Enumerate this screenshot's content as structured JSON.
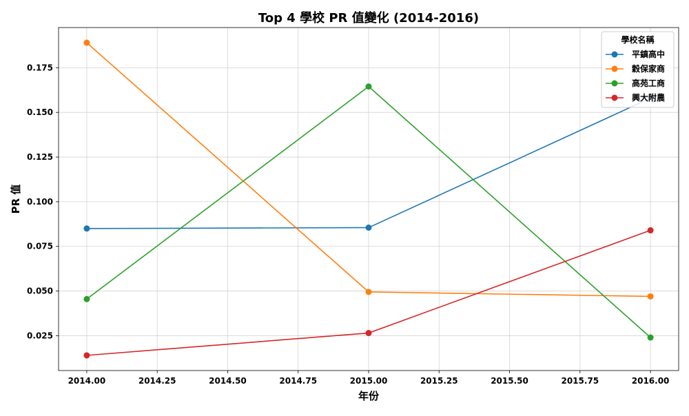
{
  "chart_data": {
    "type": "line",
    "title": "Top 4 學校 PR 值變化 (2014-2016)",
    "xlabel": "年份",
    "ylabel": "PR 值",
    "x": [
      2014,
      2015,
      2016
    ],
    "xlim": [
      2013.9,
      2016.1
    ],
    "ylim": [
      0.0055,
      0.1975
    ],
    "x_ticks": [
      2014.0,
      2014.25,
      2014.5,
      2014.75,
      2015.0,
      2015.25,
      2015.5,
      2015.75,
      2016.0
    ],
    "x_tick_labels": [
      "2014.00",
      "2014.25",
      "2014.50",
      "2014.75",
      "2015.00",
      "2015.25",
      "2015.50",
      "2015.75",
      "2016.00"
    ],
    "y_ticks": [
      0.025,
      0.05,
      0.075,
      0.1,
      0.125,
      0.15,
      0.175
    ],
    "y_tick_labels": [
      "0.025",
      "0.050",
      "0.075",
      "0.100",
      "0.125",
      "0.150",
      "0.175"
    ],
    "grid": true,
    "legend": {
      "title": "學校名稱",
      "position": "top-right"
    },
    "series": [
      {
        "name": "平鎮高中",
        "color": "#1f77b4",
        "values": [
          0.085,
          0.0855,
          0.158
        ]
      },
      {
        "name": "穀保家商",
        "color": "#ff7f0e",
        "values": [
          0.189,
          0.0495,
          0.047
        ]
      },
      {
        "name": "高苑工商",
        "color": "#2ca02c",
        "values": [
          0.0455,
          0.1645,
          0.024
        ]
      },
      {
        "name": "興大附農",
        "color": "#d62728",
        "values": [
          0.014,
          0.0265,
          0.084
        ]
      }
    ]
  }
}
